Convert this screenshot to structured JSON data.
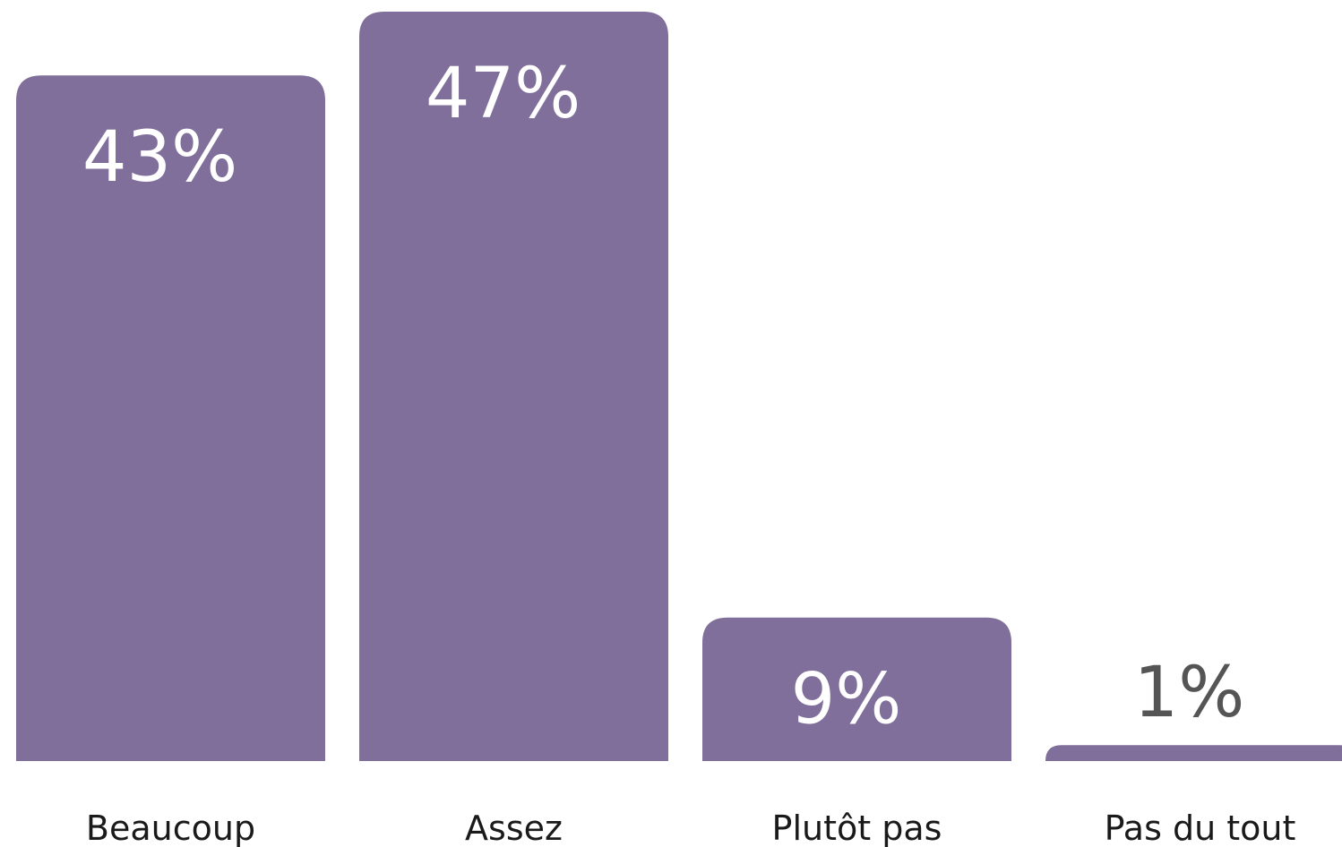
{
  "chart_data": {
    "type": "bar",
    "categories": [
      "Beaucoup",
      "Assez",
      "Plutôt pas",
      "Pas du tout"
    ],
    "values": [
      43,
      47,
      9,
      1
    ],
    "value_labels": [
      "43%",
      "47%",
      "9%",
      "1%"
    ],
    "color": "#7f6f9a"
  }
}
